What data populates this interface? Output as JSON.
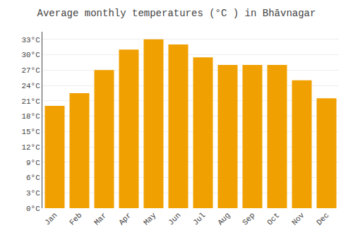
{
  "chart_data": {
    "type": "bar",
    "title": "Average monthly temperatures (°C ) in Bhāvnagar",
    "categories": [
      "Jan",
      "Feb",
      "Mar",
      "Apr",
      "May",
      "Jun",
      "Jul",
      "Aug",
      "Sep",
      "Oct",
      "Nov",
      "Dec"
    ],
    "values": [
      20.0,
      22.5,
      27.0,
      31.0,
      33.0,
      32.0,
      29.5,
      28.0,
      28.0,
      28.0,
      25.0,
      21.5
    ],
    "color": "#F0A000",
    "ylim": [
      0,
      34.5
    ],
    "yticks": [
      {
        "value": 0,
        "label": "0°C"
      },
      {
        "value": 3,
        "label": "3°C"
      },
      {
        "value": 6,
        "label": "6°C"
      },
      {
        "value": 9,
        "label": "9°C"
      },
      {
        "value": 12,
        "label": "12°C"
      },
      {
        "value": 15,
        "label": "15°C"
      },
      {
        "value": 18,
        "label": "18°C"
      },
      {
        "value": 21,
        "label": "21°C"
      },
      {
        "value": 24,
        "label": "24°C"
      },
      {
        "value": 27,
        "label": "27°C"
      },
      {
        "value": 30,
        "label": "30°C"
      },
      {
        "value": 33,
        "label": "33°C"
      }
    ],
    "grid": true
  }
}
